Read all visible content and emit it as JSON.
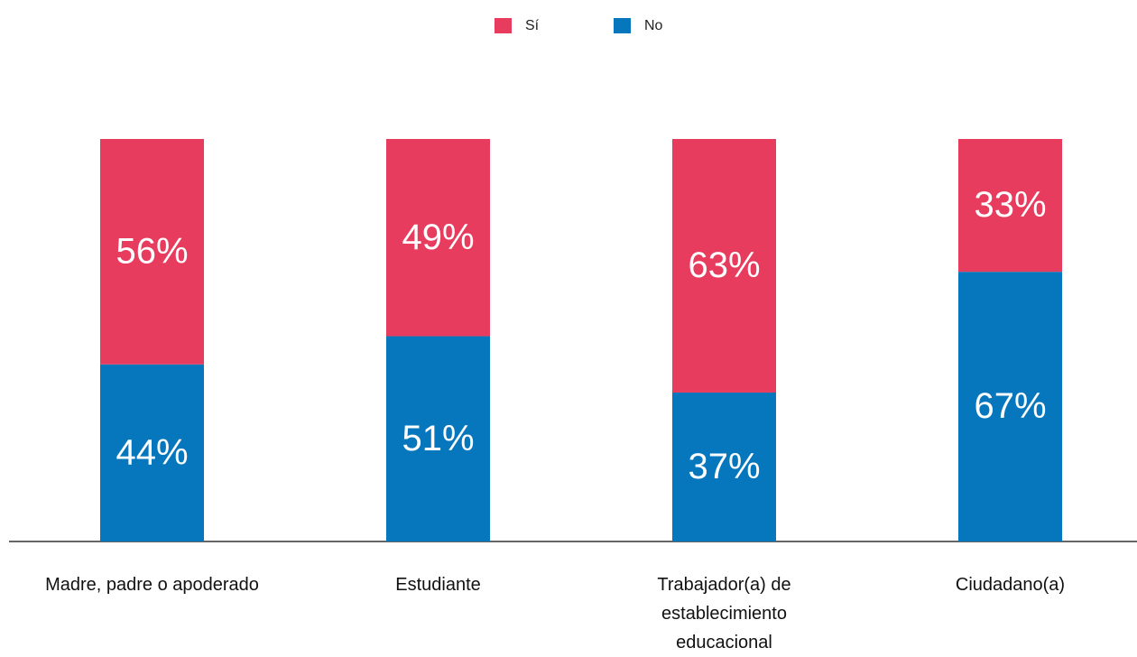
{
  "chart_data": {
    "type": "stacked_bar",
    "categories": [
      "Madre, padre o apoderado",
      "Estudiante",
      "Trabajador(a) de establecimiento educacional",
      "Ciudadano(a)"
    ],
    "series": [
      {
        "name": "Sí",
        "color": "#e83c5e",
        "values": [
          56,
          49,
          63,
          33
        ],
        "value_labels": [
          "56%",
          "49%",
          "63%",
          "33%"
        ]
      },
      {
        "name": "No",
        "color": "#0777bd",
        "values": [
          44,
          51,
          37,
          67
        ],
        "value_labels": [
          "44%",
          "51%",
          "37%",
          "67%"
        ]
      }
    ],
    "ylim": [
      0,
      100
    ]
  }
}
